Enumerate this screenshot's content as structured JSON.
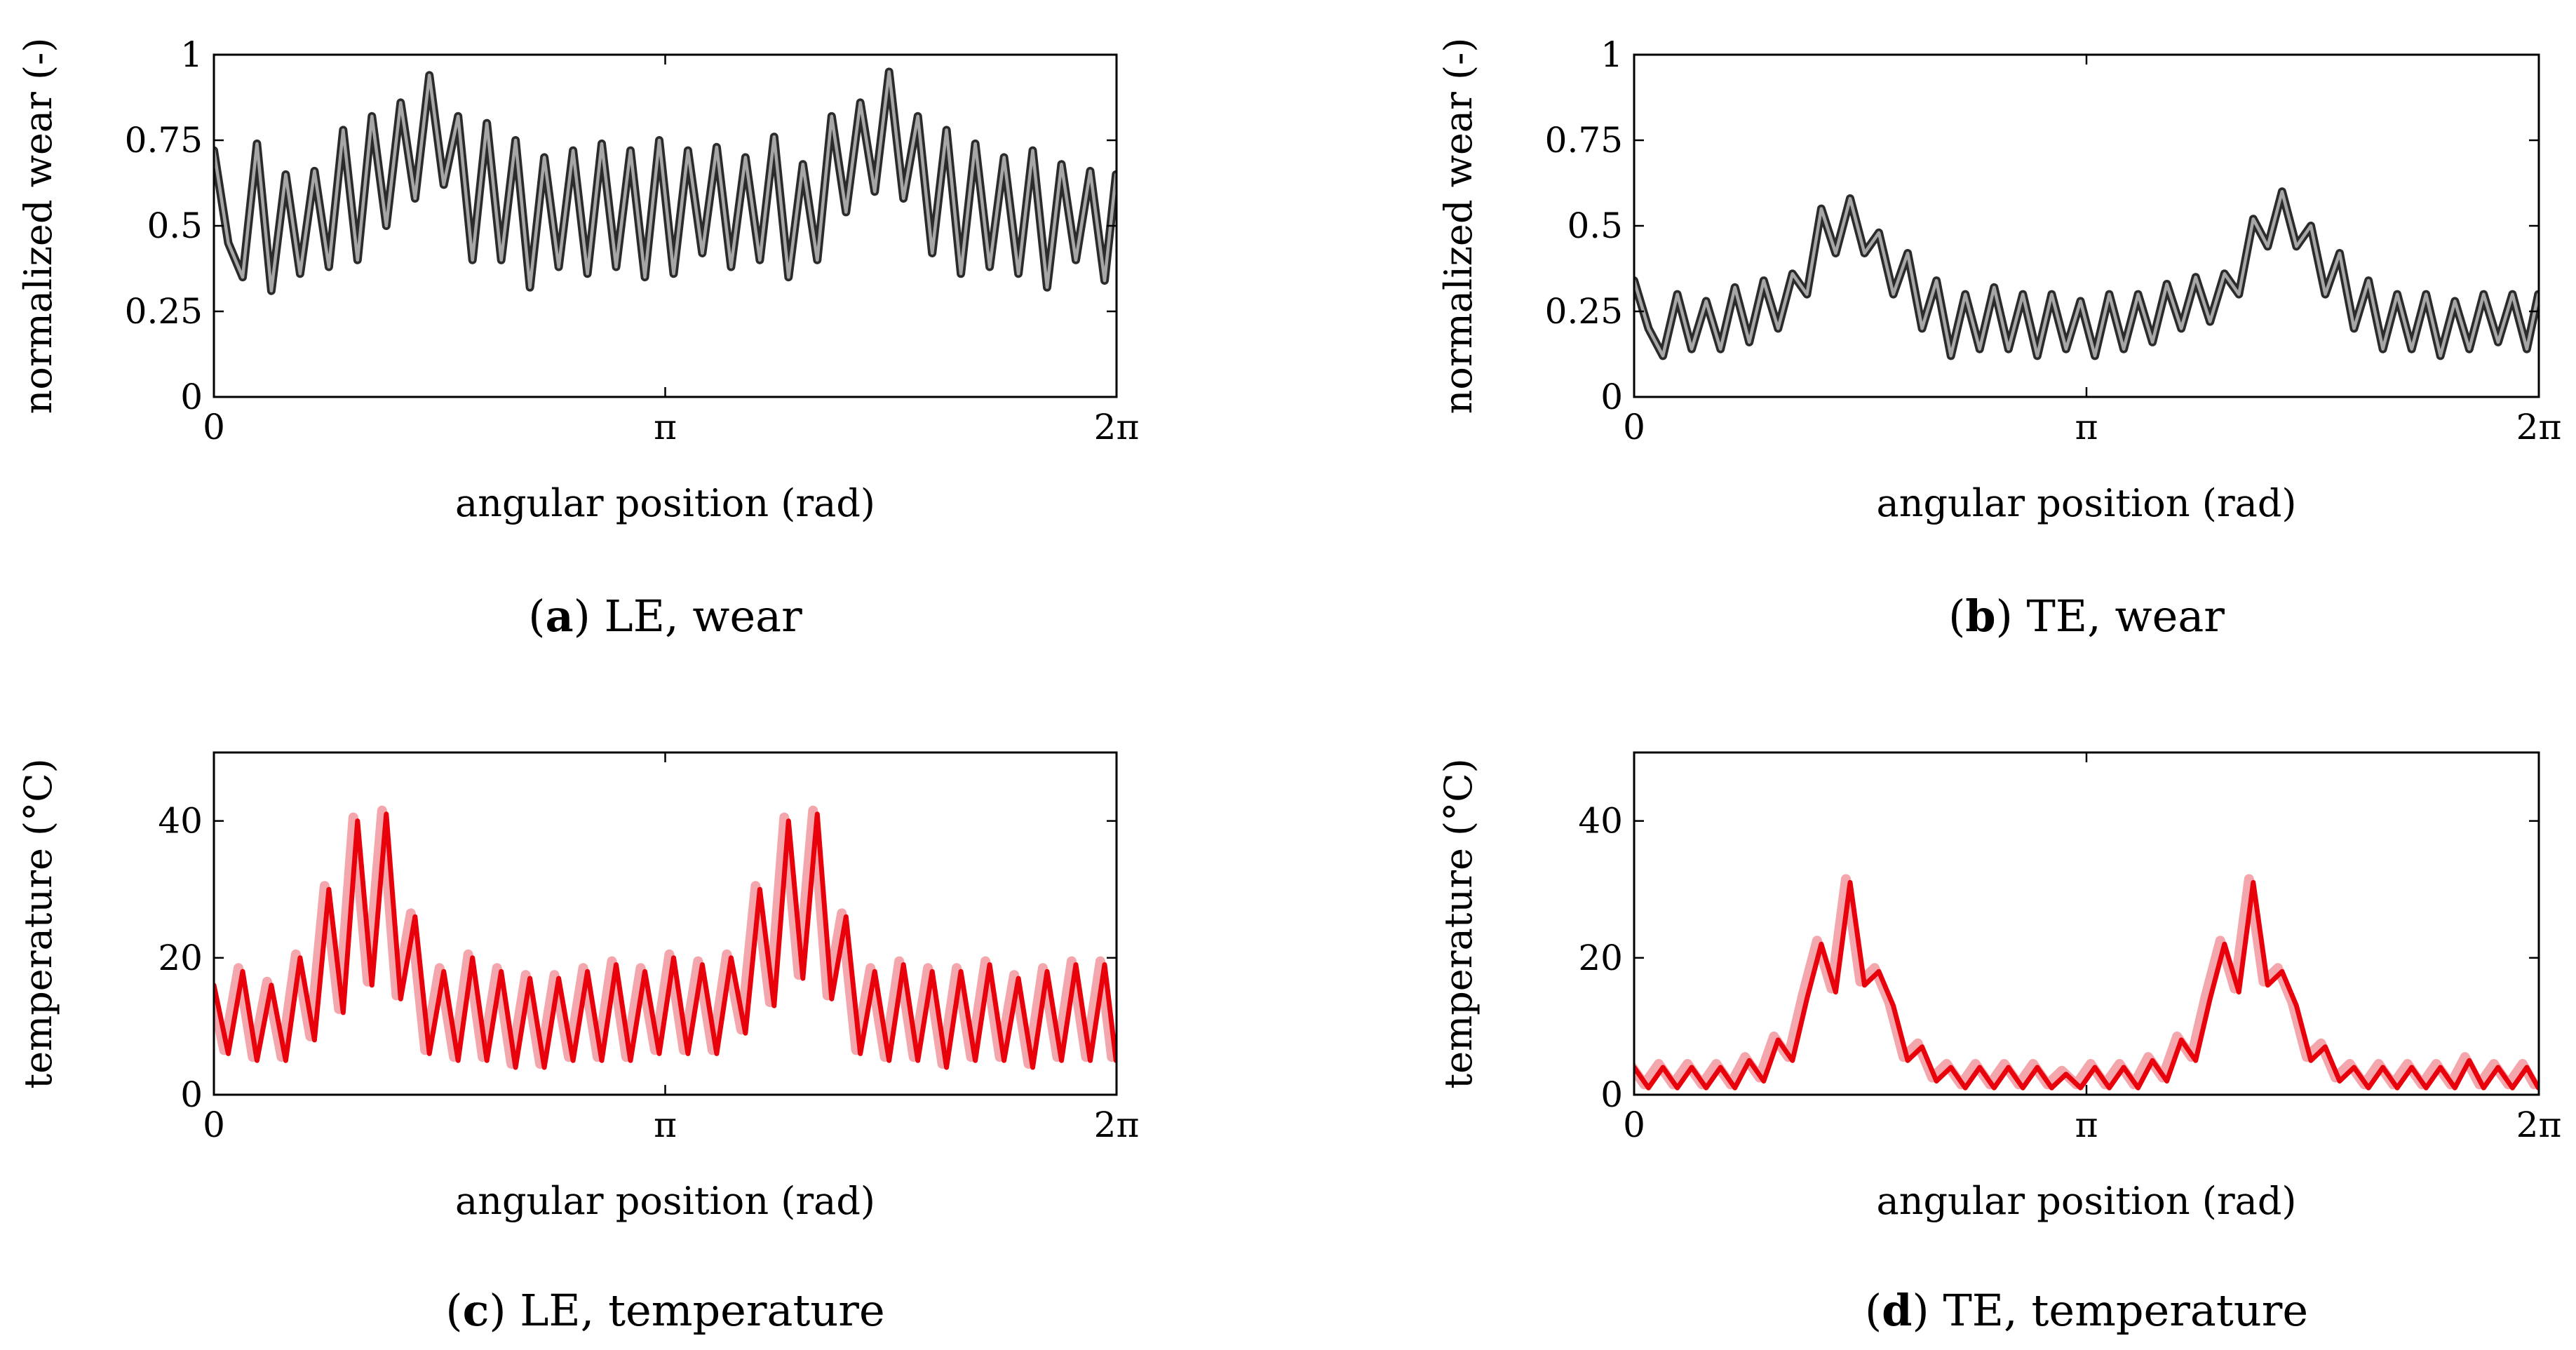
{
  "chart_data": [
    {
      "id": "a",
      "type": "line",
      "caption_tag": "a",
      "caption_text": "LE, wear",
      "xlabel": "angular position (rad)",
      "ylabel": "normalized wear (-)",
      "xlim": [
        0,
        6.2832
      ],
      "ylim": [
        0,
        1
      ],
      "xticks": [
        0,
        3.1416,
        6.2832
      ],
      "xtick_labels": [
        "0",
        "π",
        "2π"
      ],
      "yticks": [
        0,
        0.25,
        0.5,
        0.75,
        1
      ],
      "ytick_labels": [
        "0",
        "0.25",
        "0.5",
        "0.75",
        "1"
      ],
      "grid": false,
      "style": "outlined",
      "colors": {
        "outer": "#2b2b2b",
        "inner": "#a6a6a6"
      },
      "series": [
        {
          "x": [
            0,
            0.1,
            0.2,
            0.3,
            0.4,
            0.5,
            0.6,
            0.7,
            0.8,
            0.9,
            1.0,
            1.1,
            1.2,
            1.3,
            1.4,
            1.5,
            1.6,
            1.7,
            1.8,
            1.9,
            2.0,
            2.1,
            2.2,
            2.3,
            2.4,
            2.5,
            2.6,
            2.7,
            2.8,
            2.9,
            3.0,
            3.1,
            3.2,
            3.3,
            3.4,
            3.5,
            3.6,
            3.7,
            3.8,
            3.9,
            4.0,
            4.1,
            4.2,
            4.3,
            4.4,
            4.5,
            4.6,
            4.7,
            4.8,
            4.9,
            5.0,
            5.1,
            5.2,
            5.3,
            5.4,
            5.5,
            5.6,
            5.7,
            5.8,
            5.9,
            6.0,
            6.1,
            6.2,
            6.28
          ],
          "y": [
            0.72,
            0.45,
            0.35,
            0.74,
            0.31,
            0.65,
            0.36,
            0.66,
            0.38,
            0.78,
            0.4,
            0.82,
            0.5,
            0.86,
            0.58,
            0.94,
            0.62,
            0.82,
            0.4,
            0.8,
            0.4,
            0.75,
            0.32,
            0.7,
            0.38,
            0.72,
            0.36,
            0.74,
            0.38,
            0.72,
            0.35,
            0.75,
            0.36,
            0.72,
            0.42,
            0.73,
            0.38,
            0.7,
            0.4,
            0.76,
            0.35,
            0.68,
            0.4,
            0.82,
            0.54,
            0.86,
            0.6,
            0.95,
            0.58,
            0.82,
            0.42,
            0.78,
            0.36,
            0.74,
            0.38,
            0.7,
            0.36,
            0.72,
            0.32,
            0.68,
            0.4,
            0.66,
            0.34,
            0.65
          ]
        }
      ]
    },
    {
      "id": "b",
      "type": "line",
      "caption_tag": "b",
      "caption_text": "TE, wear",
      "xlabel": "angular position (rad)",
      "ylabel": "normalized wear (-)",
      "xlim": [
        0,
        6.2832
      ],
      "ylim": [
        0,
        1
      ],
      "xticks": [
        0,
        3.1416,
        6.2832
      ],
      "xtick_labels": [
        "0",
        "π",
        "2π"
      ],
      "yticks": [
        0,
        0.25,
        0.5,
        0.75,
        1
      ],
      "ytick_labels": [
        "0",
        "0.25",
        "0.5",
        "0.75",
        "1"
      ],
      "grid": false,
      "style": "outlined",
      "colors": {
        "outer": "#2b2b2b",
        "inner": "#a6a6a6"
      },
      "series": [
        {
          "x": [
            0,
            0.1,
            0.2,
            0.3,
            0.4,
            0.5,
            0.6,
            0.7,
            0.8,
            0.9,
            1.0,
            1.1,
            1.2,
            1.3,
            1.4,
            1.5,
            1.6,
            1.7,
            1.8,
            1.9,
            2.0,
            2.1,
            2.2,
            2.3,
            2.4,
            2.5,
            2.6,
            2.7,
            2.8,
            2.9,
            3.0,
            3.1,
            3.2,
            3.3,
            3.4,
            3.5,
            3.6,
            3.7,
            3.8,
            3.9,
            4.0,
            4.1,
            4.2,
            4.3,
            4.4,
            4.5,
            4.6,
            4.7,
            4.8,
            4.9,
            5.0,
            5.1,
            5.2,
            5.3,
            5.4,
            5.5,
            5.6,
            5.7,
            5.8,
            5.9,
            6.0,
            6.1,
            6.2,
            6.28
          ],
          "y": [
            0.34,
            0.2,
            0.12,
            0.3,
            0.14,
            0.28,
            0.14,
            0.32,
            0.16,
            0.34,
            0.2,
            0.36,
            0.3,
            0.55,
            0.42,
            0.58,
            0.42,
            0.48,
            0.3,
            0.42,
            0.2,
            0.34,
            0.12,
            0.3,
            0.14,
            0.32,
            0.14,
            0.3,
            0.12,
            0.3,
            0.14,
            0.28,
            0.12,
            0.3,
            0.14,
            0.3,
            0.16,
            0.33,
            0.2,
            0.35,
            0.22,
            0.36,
            0.3,
            0.52,
            0.44,
            0.6,
            0.44,
            0.5,
            0.3,
            0.42,
            0.2,
            0.34,
            0.14,
            0.3,
            0.14,
            0.3,
            0.12,
            0.28,
            0.14,
            0.3,
            0.16,
            0.3,
            0.14,
            0.3
          ]
        }
      ]
    },
    {
      "id": "c",
      "type": "line",
      "caption_tag": "c",
      "caption_text": "LE, temperature",
      "xlabel": "angular position (rad)",
      "ylabel": "temperature (°C)",
      "xlim": [
        0,
        6.2832
      ],
      "ylim": [
        0,
        50
      ],
      "xticks": [
        0,
        3.1416,
        6.2832
      ],
      "xtick_labels": [
        "0",
        "π",
        "2π"
      ],
      "yticks": [
        0,
        20,
        40
      ],
      "ytick_labels": [
        "0",
        "20",
        "40"
      ],
      "grid": false,
      "style": "band",
      "colors": {
        "main": "#e8000b",
        "light": "#f4a6ad"
      },
      "series": [
        {
          "x": [
            0,
            0.1,
            0.2,
            0.3,
            0.4,
            0.5,
            0.6,
            0.7,
            0.8,
            0.9,
            1.0,
            1.1,
            1.2,
            1.3,
            1.4,
            1.5,
            1.6,
            1.7,
            1.8,
            1.9,
            2.0,
            2.1,
            2.2,
            2.3,
            2.4,
            2.5,
            2.6,
            2.7,
            2.8,
            2.9,
            3.0,
            3.1,
            3.2,
            3.3,
            3.4,
            3.5,
            3.6,
            3.7,
            3.8,
            3.9,
            4.0,
            4.1,
            4.2,
            4.3,
            4.4,
            4.5,
            4.6,
            4.7,
            4.8,
            4.9,
            5.0,
            5.1,
            5.2,
            5.3,
            5.4,
            5.5,
            5.6,
            5.7,
            5.8,
            5.9,
            6.0,
            6.1,
            6.2,
            6.28
          ],
          "y": [
            16,
            6,
            18,
            5,
            16,
            5,
            20,
            8,
            30,
            12,
            40,
            16,
            41,
            14,
            26,
            6,
            18,
            5,
            20,
            5,
            18,
            4,
            17,
            4,
            17,
            5,
            18,
            5,
            19,
            5,
            18,
            6,
            20,
            6,
            19,
            6,
            20,
            9,
            30,
            13,
            40,
            17,
            41,
            14,
            26,
            6,
            18,
            5,
            19,
            5,
            18,
            4,
            18,
            5,
            19,
            5,
            17,
            4,
            18,
            5,
            19,
            5,
            19,
            5
          ]
        }
      ]
    },
    {
      "id": "d",
      "type": "line",
      "caption_tag": "d",
      "caption_text": "TE, temperature",
      "xlabel": "angular position (rad)",
      "ylabel": "temperature (°C)",
      "xlim": [
        0,
        6.2832
      ],
      "ylim": [
        0,
        50
      ],
      "xticks": [
        0,
        3.1416,
        6.2832
      ],
      "xtick_labels": [
        "0",
        "π",
        "2π"
      ],
      "yticks": [
        0,
        20,
        40
      ],
      "ytick_labels": [
        "0",
        "20",
        "40"
      ],
      "grid": false,
      "style": "band",
      "colors": {
        "main": "#e8000b",
        "light": "#f4a6ad"
      },
      "series": [
        {
          "x": [
            0,
            0.1,
            0.2,
            0.3,
            0.4,
            0.5,
            0.6,
            0.7,
            0.8,
            0.9,
            1.0,
            1.1,
            1.2,
            1.3,
            1.4,
            1.5,
            1.6,
            1.7,
            1.8,
            1.9,
            2.0,
            2.1,
            2.2,
            2.3,
            2.4,
            2.5,
            2.6,
            2.7,
            2.8,
            2.9,
            3.0,
            3.1,
            3.2,
            3.3,
            3.4,
            3.5,
            3.6,
            3.7,
            3.8,
            3.9,
            4.0,
            4.1,
            4.2,
            4.3,
            4.4,
            4.5,
            4.6,
            4.7,
            4.8,
            4.9,
            5.0,
            5.1,
            5.2,
            5.3,
            5.4,
            5.5,
            5.6,
            5.7,
            5.8,
            5.9,
            6.0,
            6.1,
            6.2,
            6.28
          ],
          "y": [
            4,
            1,
            4,
            1,
            4,
            1,
            4,
            1,
            5,
            2,
            8,
            5,
            14,
            22,
            15,
            31,
            16,
            18,
            13,
            5,
            7,
            2,
            4,
            1,
            4,
            1,
            4,
            1,
            4,
            1,
            3,
            1,
            4,
            1,
            4,
            1,
            5,
            2,
            8,
            5,
            14,
            22,
            15,
            31,
            16,
            18,
            13,
            5,
            7,
            2,
            4,
            1,
            4,
            1,
            4,
            1,
            4,
            1,
            5,
            1,
            4,
            1,
            4,
            1
          ]
        }
      ]
    }
  ]
}
